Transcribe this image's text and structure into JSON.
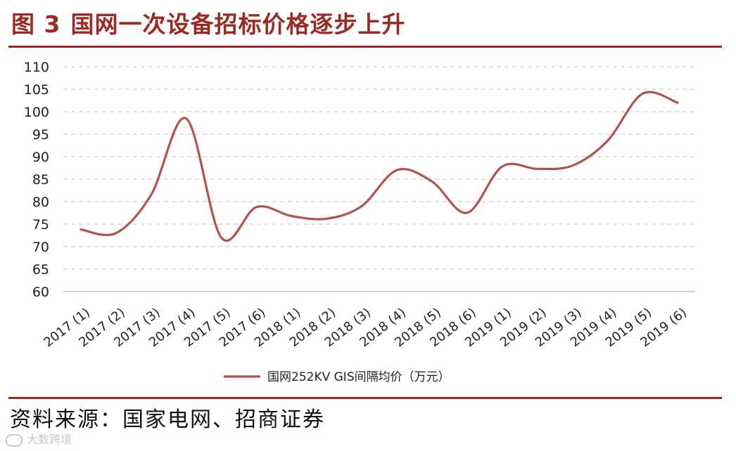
{
  "header": {
    "figure_number": "图 3",
    "title": "国网一次设备招标价格逐步上升"
  },
  "source_note": "资料来源：国家电网、招商证券",
  "watermark": "大数跨境",
  "colors": {
    "accent": "#9b2a22",
    "series": "#b5524a",
    "grid": "#cfcfcf",
    "axis": "#bfbfbf"
  },
  "chart_data": {
    "type": "line",
    "title": "",
    "xlabel": "",
    "ylabel": "",
    "ylim": [
      60,
      110
    ],
    "yticks": [
      60,
      65,
      70,
      75,
      80,
      85,
      90,
      95,
      100,
      105,
      110
    ],
    "grid": "horizontal dashed",
    "legend": "bottom-center",
    "categories": [
      "2017 (1)",
      "2017 (2)",
      "2017 (3)",
      "2017 (4)",
      "2017 (5)",
      "2017 (6)",
      "2018 (1)",
      "2018 (2)",
      "2018 (3)",
      "2018 (4)",
      "2018 (5)",
      "2018 (6)",
      "2019 (1)",
      "2019 (2)",
      "2019 (3)",
      "2019 (4)",
      "2019 (5)",
      "2019 (6)"
    ],
    "series": [
      {
        "name": "国网252KV GIS间隔均价（万元）",
        "values": [
          73.8,
          73.0,
          81.5,
          98.5,
          72.0,
          78.8,
          76.8,
          76.2,
          79.0,
          87.0,
          84.5,
          77.5,
          87.8,
          87.3,
          88.0,
          93.5,
          104.0,
          102.0
        ]
      }
    ]
  }
}
